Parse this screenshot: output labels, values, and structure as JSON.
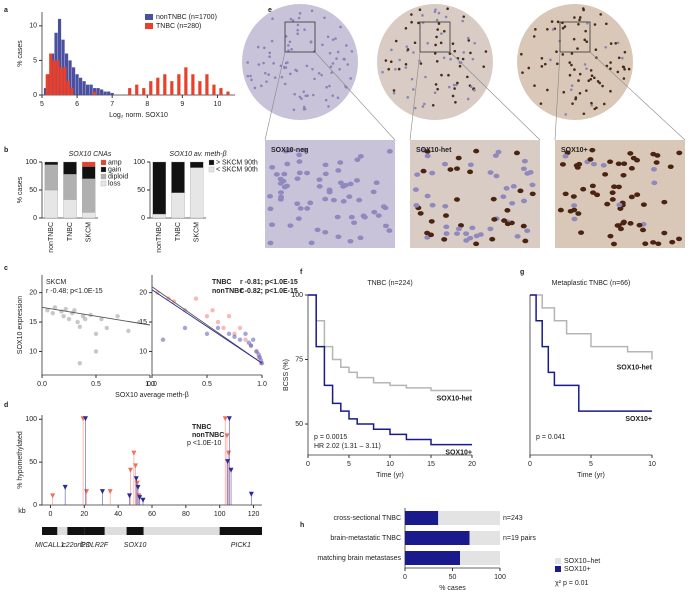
{
  "panel_labels": [
    "a",
    "b",
    "c",
    "d",
    "e",
    "f",
    "g",
    "h"
  ],
  "tissue_images": {
    "labels": [
      "SOX10-neg",
      "SOX10-het",
      "SOX10+"
    ]
  },
  "chart_data": [
    {
      "type": "bar",
      "xlabel": "Log₂ norm. SOX10",
      "ylabel": "% cases",
      "xlim": [
        5,
        10.5
      ],
      "xticks": [
        5,
        6,
        7,
        8,
        9,
        10
      ],
      "ylim": [
        0,
        12
      ],
      "yticks": [
        0,
        5,
        10
      ],
      "series": [
        {
          "name": "nonTNBC (n=1700)",
          "color": "#4b4fa0",
          "x": [
            5.1,
            5.2,
            5.3,
            5.4,
            5.5,
            5.6,
            5.7,
            5.8,
            5.9,
            6.0,
            6.1,
            6.2,
            6.3,
            6.4,
            6.5,
            6.6,
            6.7,
            6.8,
            6.9,
            7.0
          ],
          "values": [
            1,
            3,
            6,
            9,
            11,
            8,
            6,
            5,
            4,
            3,
            2.5,
            2,
            1.5,
            1.5,
            1,
            1,
            0.8,
            0.5,
            0.5,
            0.3
          ]
        },
        {
          "name": "TNBC (n=280)",
          "color": "#e8402a",
          "x": [
            5.15,
            5.25,
            5.35,
            5.45,
            5.55,
            5.65,
            5.75,
            5.85,
            6.5,
            7.5,
            7.7,
            7.9,
            8.1,
            8.3,
            8.5,
            8.7,
            8.9,
            9.1,
            9.3,
            9.5,
            9.7,
            9.9,
            10.1,
            10.3
          ],
          "values": [
            3,
            6,
            5,
            5,
            4,
            4,
            2,
            1,
            0.5,
            1,
            1.5,
            1,
            2,
            2.5,
            3,
            2,
            3,
            4,
            3,
            2,
            3,
            1.5,
            1,
            0.5
          ]
        }
      ]
    },
    {
      "type": "stacked_bar",
      "title": "SOX10 CNAs",
      "ylabel": "% cases",
      "categories": [
        "nonTNBC",
        "TNBC",
        "SKCM"
      ],
      "ylim": [
        0,
        100
      ],
      "yticks": [
        0,
        50,
        100
      ],
      "series": [
        {
          "name": "loss",
          "color": "#e6e6e6",
          "values": [
            50,
            33,
            10
          ]
        },
        {
          "name": "diploid",
          "color": "#b0b0b0",
          "values": [
            45,
            45,
            60
          ]
        },
        {
          "name": "gain",
          "color": "#111111",
          "values": [
            5,
            22,
            22
          ]
        },
        {
          "name": "amp",
          "color": "#e8402a",
          "values": [
            0,
            0,
            8
          ]
        }
      ]
    },
    {
      "type": "stacked_bar",
      "title": "SOX10 av. meth-β",
      "categories": [
        "nonTNBC",
        "TNBC",
        "SKCM"
      ],
      "ylim": [
        0,
        100
      ],
      "yticks": [
        0,
        50,
        100
      ],
      "series": [
        {
          "name": "< SKCM 90th",
          "color": "#e6e6e6",
          "values": [
            7,
            45,
            90
          ]
        },
        {
          "name": "> SKCM 90th",
          "color": "#111111",
          "values": [
            93,
            55,
            10
          ]
        }
      ]
    },
    {
      "type": "scatter",
      "ylabel": "SOX10 expression",
      "xlabel": "SOX10 average meth-β",
      "xlim": [
        0,
        1
      ],
      "xticks": [
        {
          "value": 0,
          "label": "0.0"
        },
        0.5,
        {
          "value": 1,
          "label": "1.0"
        }
      ],
      "ylim": [
        6,
        23
      ],
      "yticks": [
        10,
        15,
        20
      ],
      "annotations": [
        "SKCM",
        "r -0.48; p<1.0E-15"
      ],
      "series": [
        {
          "name": "SKCM",
          "color": "#9a9a9a",
          "x": [
            0.05,
            0.1,
            0.12,
            0.18,
            0.2,
            0.22,
            0.25,
            0.28,
            0.3,
            0.33,
            0.35,
            0.38,
            0.4,
            0.45,
            0.5,
            0.55,
            0.6,
            0.7,
            0.8,
            0.9,
            0.35,
            0.5
          ],
          "values": [
            17,
            16.5,
            17.5,
            16.8,
            16,
            17.2,
            15.5,
            16.5,
            17,
            15,
            14.2,
            16,
            15.5,
            16.2,
            13,
            15.5,
            14,
            16,
            13.5,
            15,
            8,
            10
          ],
          "fit": {
            "x": [
              0,
              1
            ],
            "values": [
              17.5,
              14.5
            ]
          }
        }
      ]
    },
    {
      "type": "scatter",
      "xlim": [
        0,
        1
      ],
      "xticks": [
        {
          "value": 0,
          "label": "0.0"
        },
        0.5,
        {
          "value": 1,
          "label": "1.0"
        }
      ],
      "ylim": [
        6,
        23
      ],
      "yticks": [
        10,
        15,
        20
      ],
      "annotations": [
        "r -0.81; p<1.0E-15",
        "r -0.82; p<1.0E-15"
      ],
      "series": [
        {
          "name": "TNBC",
          "color": "#f08080",
          "x": [
            0.05,
            0.15,
            0.2,
            0.3,
            0.4,
            0.5,
            0.55,
            0.6,
            0.65,
            0.7,
            0.75,
            0.8,
            0.85,
            0.9,
            0.95,
            0.97,
            0.99
          ],
          "values": [
            20,
            19,
            18.5,
            17,
            19,
            16,
            17,
            15,
            14,
            16,
            13,
            14,
            12,
            11,
            10,
            9,
            8
          ],
          "fit": {
            "x": [
              0,
              1
            ],
            "values": [
              21,
              8
            ]
          }
        },
        {
          "name": "nonTNBC",
          "color": "#5a5ab8",
          "x": [
            0.1,
            0.3,
            0.5,
            0.6,
            0.7,
            0.75,
            0.8,
            0.85,
            0.88,
            0.9,
            0.92,
            0.95,
            0.97,
            0.98,
            0.99,
            1.0
          ],
          "values": [
            12,
            14,
            13,
            14,
            13,
            12.5,
            12,
            13,
            11.5,
            11,
            12,
            10,
            9.5,
            9,
            8.5,
            8
          ],
          "fit": {
            "x": [
              0,
              1
            ],
            "values": [
              20.5,
              8
            ]
          }
        }
      ]
    },
    {
      "type": "lollipop",
      "ylabel": "% hypomethylated",
      "xlabel": "kb",
      "xlim": [
        -5,
        125
      ],
      "xticks": [
        0,
        20,
        40,
        60,
        80,
        100,
        120
      ],
      "ylim": [
        0,
        105
      ],
      "yticks": [
        0,
        50,
        100
      ],
      "annotations": [
        "p <1.0E-10"
      ],
      "genes": [
        {
          "name": "MICALL1",
          "start": -5,
          "end": 4
        },
        {
          "name": "c22orf23",
          "start": 10,
          "end": 20
        },
        {
          "name": "POLR2F",
          "start": 20,
          "end": 32
        },
        {
          "name": "SOX10",
          "start": 45,
          "end": 55
        },
        {
          "name": "PICK1",
          "start": 100,
          "end": 125
        }
      ],
      "series": [
        {
          "name": "TNBC",
          "color": "#f07060",
          "x": [
            2,
            20,
            22,
            36,
            48,
            50,
            51,
            52,
            53,
            104,
            105,
            106
          ],
          "values": [
            10,
            100,
            15,
            15,
            40,
            60,
            45,
            25,
            10,
            100,
            80,
            60
          ]
        },
        {
          "name": "nonTNBC",
          "color": "#2a2a9a",
          "x": [
            8,
            20,
            30,
            46,
            50,
            51,
            52,
            54,
            104,
            105,
            106,
            118
          ],
          "values": [
            20,
            100,
            15,
            10,
            30,
            20,
            8,
            5,
            50,
            100,
            40,
            12
          ]
        }
      ]
    },
    {
      "type": "line",
      "step": true,
      "title": "TNBC (n=224)",
      "xlabel": "Time (yr)",
      "ylabel": "BCSS (%)",
      "xlim": [
        0,
        20
      ],
      "xticks": [
        0,
        5,
        10,
        15,
        20
      ],
      "ylim": [
        38,
        100
      ],
      "yticks": [
        50,
        75,
        100
      ],
      "annotations": [
        "p = 0.0015",
        "HR 2.02 (1.31 – 3.11)"
      ],
      "series": [
        {
          "name": "SOX10-het",
          "color": "#b5b5b5",
          "x": [
            0,
            1,
            2,
            3,
            4,
            5,
            6,
            8,
            10,
            12,
            15,
            20
          ],
          "values": [
            100,
            90,
            80,
            75,
            72,
            70,
            68,
            66,
            65,
            64,
            63,
            63
          ]
        },
        {
          "name": "SOX10+",
          "color": "#1a1a8c",
          "x": [
            0,
            1,
            2,
            3,
            4,
            5,
            6,
            8,
            10,
            12,
            15,
            20
          ],
          "values": [
            100,
            80,
            65,
            58,
            55,
            52,
            50,
            48,
            46,
            44,
            42,
            42
          ]
        }
      ]
    },
    {
      "type": "line",
      "step": true,
      "title": "Metaplastic TNBC (n=66)",
      "xlabel": "Time (yr)",
      "xlim": [
        0,
        10
      ],
      "xticks": [
        0,
        5,
        10
      ],
      "ylim": [
        38,
        100
      ],
      "annotations": [
        "p = 0.041"
      ],
      "series": [
        {
          "name": "SOX10-het",
          "color": "#b5b5b5",
          "x": [
            0,
            1,
            2,
            3,
            4,
            5,
            6,
            8,
            10
          ],
          "values": [
            100,
            95,
            90,
            85,
            85,
            80,
            80,
            78,
            75
          ]
        },
        {
          "name": "SOX10+",
          "color": "#1a1a8c",
          "x": [
            0,
            0.5,
            1,
            1.5,
            2,
            3,
            4,
            10
          ],
          "values": [
            100,
            90,
            80,
            70,
            65,
            65,
            55,
            55
          ]
        }
      ]
    },
    {
      "type": "stacked_barh",
      "xlabel": "% cases",
      "categories": [
        "cross-sectional TNBC",
        "brain-metastatic TNBC",
        "matching brain metastases"
      ],
      "xlim": [
        0,
        100
      ],
      "xticks": [
        0,
        50,
        100
      ],
      "annotations": [
        "n=243",
        "n=19 pairs",
        "χ² p = 0.01"
      ],
      "series": [
        {
          "name": "SOX10+",
          "color": "#1a1a8c",
          "values": [
            35,
            68,
            58
          ]
        },
        {
          "name": "SOX10–het",
          "color": "#e3e3e3",
          "values": [
            65,
            32,
            42
          ]
        }
      ]
    }
  ]
}
